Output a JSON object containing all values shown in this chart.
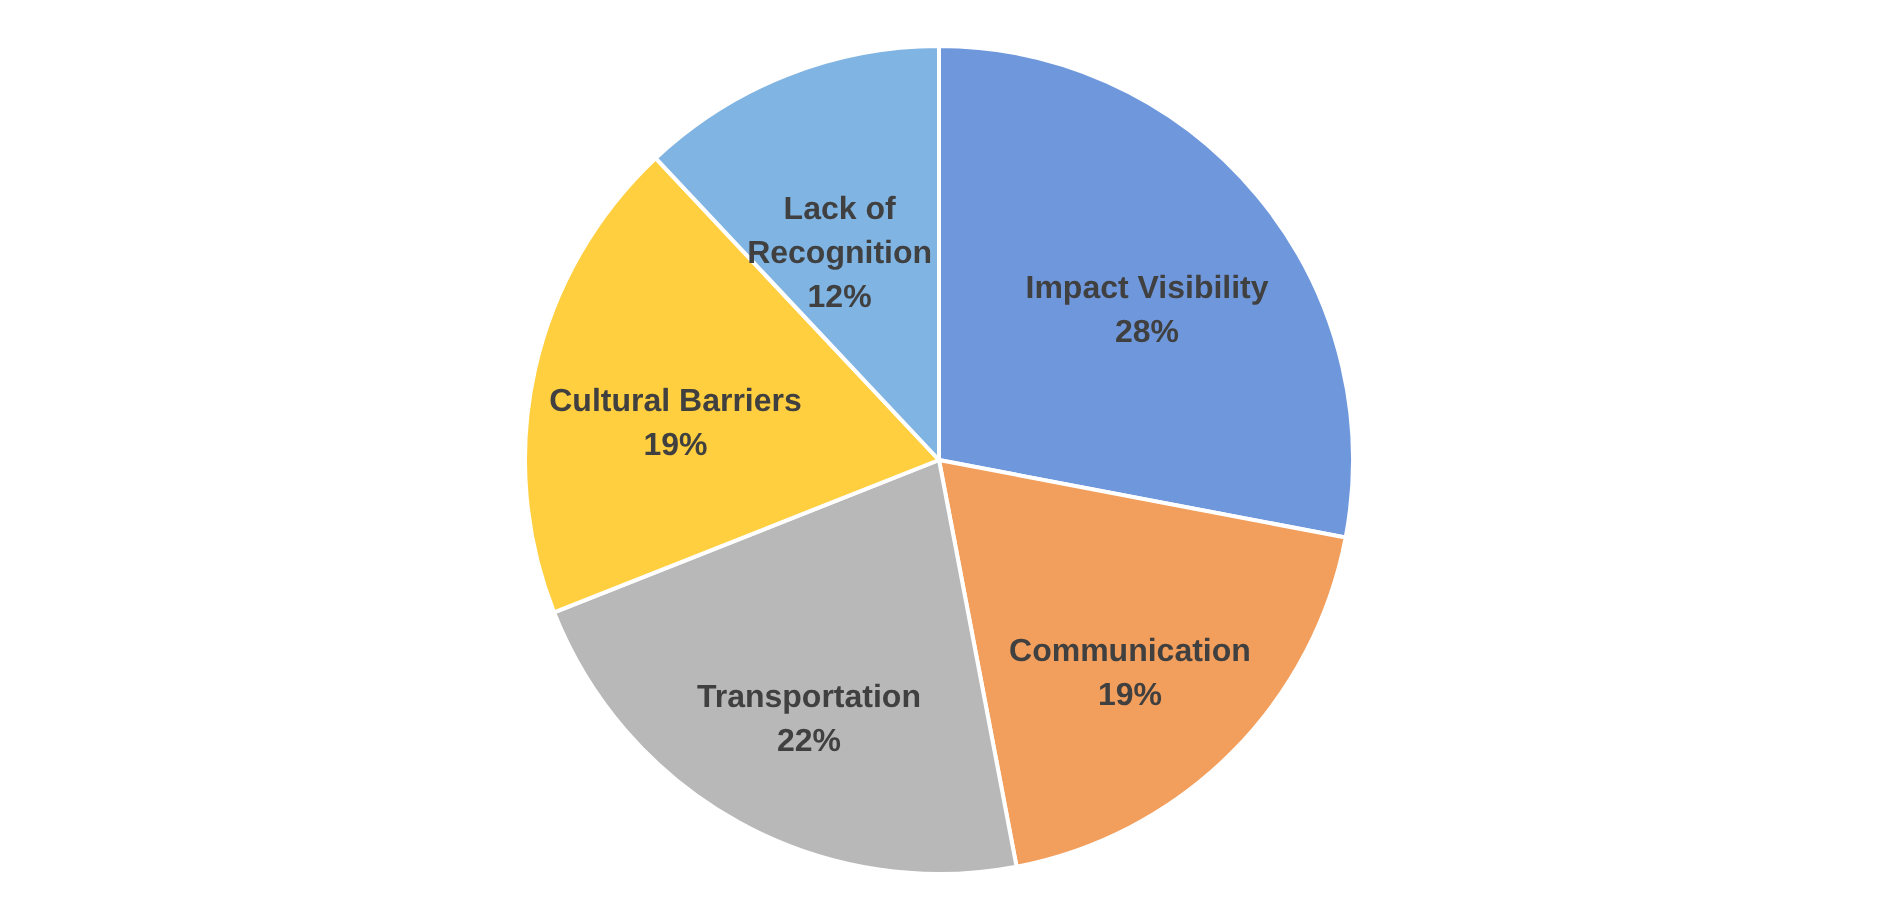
{
  "chart_data": {
    "type": "pie",
    "categories": [
      "Impact Visibility",
      "Communication",
      "Transportation",
      "Cultural Barriers",
      "Lack of Recognition"
    ],
    "values": [
      28,
      19,
      22,
      19,
      12
    ],
    "value_labels": [
      "28%",
      "19%",
      "22%",
      "19%",
      "12%"
    ],
    "colors": [
      "#6f98dc",
      "#f29e5c",
      "#b8b8b8",
      "#ffcf3f",
      "#80b4e2"
    ]
  }
}
